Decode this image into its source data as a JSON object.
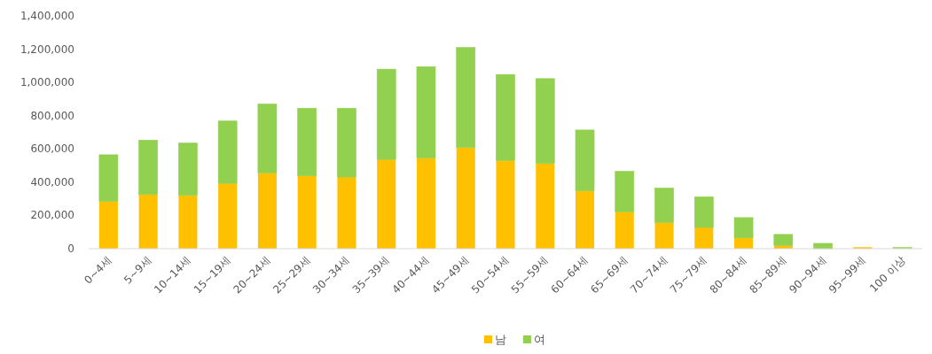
{
  "chart_data": {
    "type": "bar",
    "stacked": true,
    "categories": [
      "0~4세",
      "5~9세",
      "10~14세",
      "15~19세",
      "20~24세",
      "25~29세",
      "30~34세",
      "35~39세",
      "40~44세",
      "45~49세",
      "50~54세",
      "55~59세",
      "60~64세",
      "65~69세",
      "70~74세",
      "75~79세",
      "80~84세",
      "85~89세",
      "90~94세",
      "95~99세",
      "100 이상"
    ],
    "series": [
      {
        "name": "남",
        "color": "#ffc000",
        "values": [
          285000,
          326000,
          321000,
          393000,
          456000,
          438000,
          431000,
          537000,
          545000,
          609000,
          531000,
          513000,
          348000,
          221000,
          158000,
          128000,
          65000,
          20000,
          null,
          9000,
          1000
        ]
      },
      {
        "name": "여",
        "color": "#92d050",
        "values": [
          280000,
          327000,
          314000,
          375000,
          414000,
          407000,
          414000,
          543000,
          550000,
          601000,
          517000,
          510000,
          366000,
          244000,
          207000,
          184000,
          122000,
          66000,
          32000,
          null,
          6000
        ]
      }
    ],
    "ylim": [
      0,
      1400000
    ],
    "yticks": [
      0,
      {
        "value": 200000,
        "label": "200,000"
      },
      {
        "value": 400000,
        "label": "400,000"
      },
      {
        "value": 600000,
        "label": "600,000"
      },
      {
        "value": 800000,
        "label": "800,000"
      },
      {
        "value": 1000000,
        "label": "1,000,000"
      },
      {
        "value": 1200000,
        "label": "1,200,000"
      },
      {
        "value": 1400000,
        "label": "1,400,000"
      }
    ],
    "grid": false,
    "legend": "bottom"
  }
}
